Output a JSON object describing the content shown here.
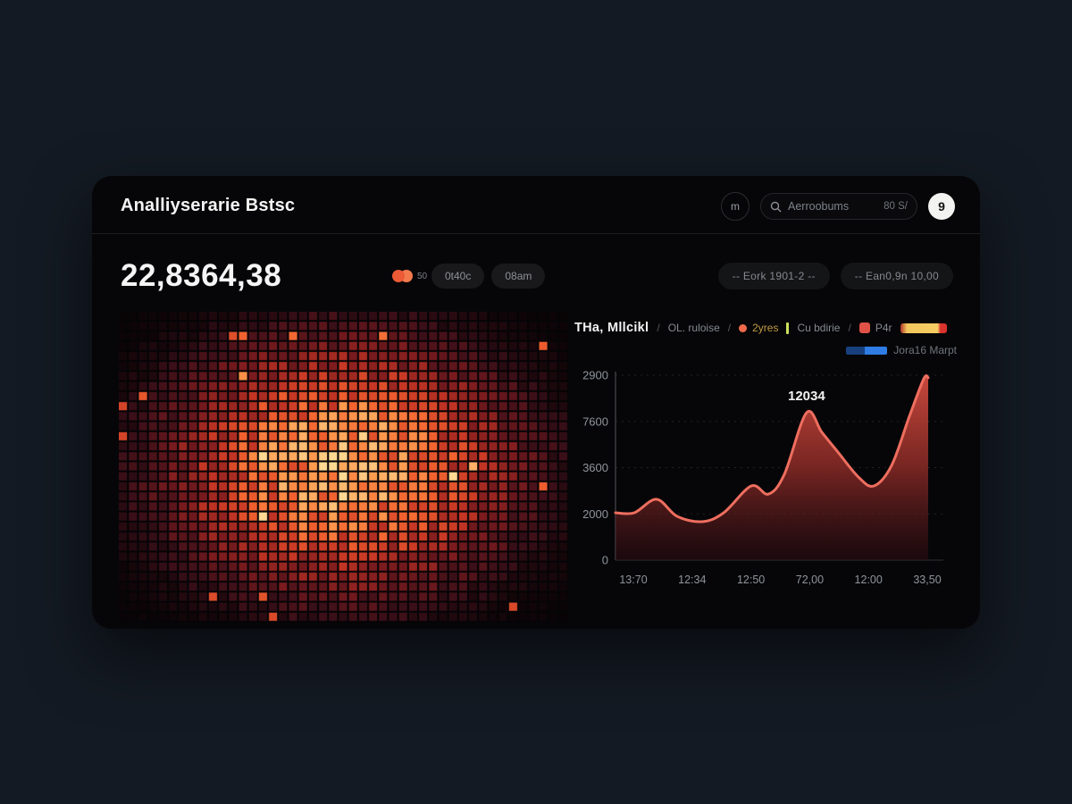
{
  "theme": {
    "page_bg": "#141a23",
    "card_bg": "#060608",
    "accent_orange": "#f0653e",
    "line_color": "#ee6e5f"
  },
  "header": {
    "title": "Analliyserarie Bstsc",
    "icon_button_label": "m",
    "search": {
      "placeholder": "Aerroobums",
      "shortcut_hint": "80 S/"
    },
    "avatar_glyph": "9"
  },
  "stats": {
    "big_value": "22,8364,38",
    "dots_caption": "50",
    "pill_1": "0t40c",
    "pill_2": "08am",
    "range_button_1": "-- Eork 1901-2 --",
    "range_button_2": "-- Ean0,9n 10,00"
  },
  "legend": {
    "title": "THa, Mllcikl",
    "sep1": "/",
    "item_1": "OL. ruloise",
    "sep2": "/",
    "item_2": "2yres",
    "item_3": "Cu bdirie",
    "sep3": "/",
    "item_4": "P4r",
    "row2_label": "Jora16 Marpt"
  },
  "chart_data": [
    {
      "type": "heatmap",
      "name": "intensity-grid",
      "description": "Radial heat blob rendered as a dense square-cell grid; brightest at center, fading to dark red then black. No axis labels visible.",
      "cols": 45,
      "rows": 31,
      "color_ramp": [
        "#070305",
        "#3a0f18",
        "#7a1b1e",
        "#c43524",
        "#f2622f",
        "#ff9a4e",
        "#ffd992"
      ],
      "ramp_stops": [
        0,
        0.06,
        0.16,
        0.32,
        0.52,
        0.72,
        1
      ],
      "seed": 7
    },
    {
      "type": "area",
      "title": "THa, Mllcikl",
      "y_ticks_bottom_to_top": [
        "0",
        "2000",
        "3600",
        "7600",
        "2900"
      ],
      "x_ticks": [
        "13:70",
        "12:34",
        "12:50",
        "72,00",
        "12:00",
        "33,50"
      ],
      "peak_label": "12034",
      "peak_index": 9,
      "points": [
        {
          "x": 0.0,
          "v": 25.6
        },
        {
          "x": 0.06,
          "v": 25.6
        },
        {
          "x": 0.131,
          "v": 32.9
        },
        {
          "x": 0.197,
          "v": 23.7
        },
        {
          "x": 0.277,
          "v": 20.8
        },
        {
          "x": 0.346,
          "v": 25.6
        },
        {
          "x": 0.434,
          "v": 40.1
        },
        {
          "x": 0.489,
          "v": 35.7
        },
        {
          "x": 0.54,
          "v": 46.4
        },
        {
          "x": 0.611,
          "v": 79.7
        },
        {
          "x": 0.66,
          "v": 69.1
        },
        {
          "x": 0.711,
          "v": 58.5
        },
        {
          "x": 0.777,
          "v": 44.9
        },
        {
          "x": 0.826,
          "v": 40.1
        },
        {
          "x": 0.883,
          "v": 51.2
        },
        {
          "x": 0.94,
          "v": 77.8
        },
        {
          "x": 0.986,
          "v": 98.1
        },
        {
          "x": 1.0,
          "v": 98.6
        }
      ],
      "value_units": "percent of plot height (axis tick labels are as printed, non-linear)",
      "line_color": "#ee6e5f",
      "fill_gradient": [
        "#cf4b3f",
        "#8f2c27",
        "#2c0c12"
      ],
      "grid": "dashed horizontal lines at each y tick",
      "legend_position": "top"
    }
  ]
}
